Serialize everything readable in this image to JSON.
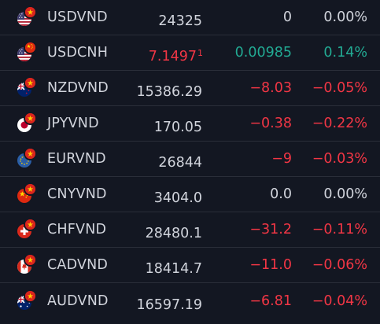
{
  "watchlist": {
    "rows": [
      {
        "symbol": "USDVND",
        "last": "24325",
        "last_sup": "",
        "change": "0",
        "change_pct": "0.00%",
        "trend": "neutral",
        "last_trend": "neutral",
        "base_flag": "us-flag-icon",
        "quote_flag": "vn-flag-icon"
      },
      {
        "symbol": "USDCNH",
        "last": "7.1497",
        "last_sup": "1",
        "change": "0.00985",
        "change_pct": "0.14%",
        "trend": "pos",
        "last_trend": "neg",
        "base_flag": "us-flag-icon",
        "quote_flag": "cn-flag-icon"
      },
      {
        "symbol": "NZDVND",
        "last": "15386.29",
        "last_sup": "",
        "change": "−8.03",
        "change_pct": "−0.05%",
        "trend": "neg",
        "last_trend": "neutral",
        "base_flag": "nz-flag-icon",
        "quote_flag": "vn-flag-icon"
      },
      {
        "symbol": "JPYVND",
        "last": "170.05",
        "last_sup": "",
        "change": "−0.38",
        "change_pct": "−0.22%",
        "trend": "neg",
        "last_trend": "neutral",
        "base_flag": "jp-flag-icon",
        "quote_flag": "vn-flag-icon"
      },
      {
        "symbol": "EURVND",
        "last": "26844",
        "last_sup": "",
        "change": "−9",
        "change_pct": "−0.03%",
        "trend": "neg",
        "last_trend": "neutral",
        "base_flag": "eu-flag-icon",
        "quote_flag": "vn-flag-icon"
      },
      {
        "symbol": "CNYVND",
        "last": "3404.0",
        "last_sup": "",
        "change": "0.0",
        "change_pct": "0.00%",
        "trend": "neutral",
        "last_trend": "neutral",
        "base_flag": "cn-flag-icon",
        "quote_flag": "vn-flag-icon"
      },
      {
        "symbol": "CHFVND",
        "last": "28480.1",
        "last_sup": "",
        "change": "−31.2",
        "change_pct": "−0.11%",
        "trend": "neg",
        "last_trend": "neutral",
        "base_flag": "ch-flag-icon",
        "quote_flag": "vn-flag-icon"
      },
      {
        "symbol": "CADVND",
        "last": "18414.7",
        "last_sup": "",
        "change": "−11.0",
        "change_pct": "−0.06%",
        "trend": "neg",
        "last_trend": "neutral",
        "base_flag": "ca-flag-icon",
        "quote_flag": "vn-flag-icon"
      },
      {
        "symbol": "AUDVND",
        "last": "16597.19",
        "last_sup": "",
        "change": "−6.81",
        "change_pct": "−0.04%",
        "trend": "neg",
        "last_trend": "neutral",
        "base_flag": "au-flag-icon",
        "quote_flag": "vn-flag-icon"
      }
    ]
  },
  "colors": {
    "background": "#131722",
    "text": "#d1d4dc",
    "negative": "#f23645",
    "positive": "#22ab94",
    "divider": "#2a2e39"
  }
}
